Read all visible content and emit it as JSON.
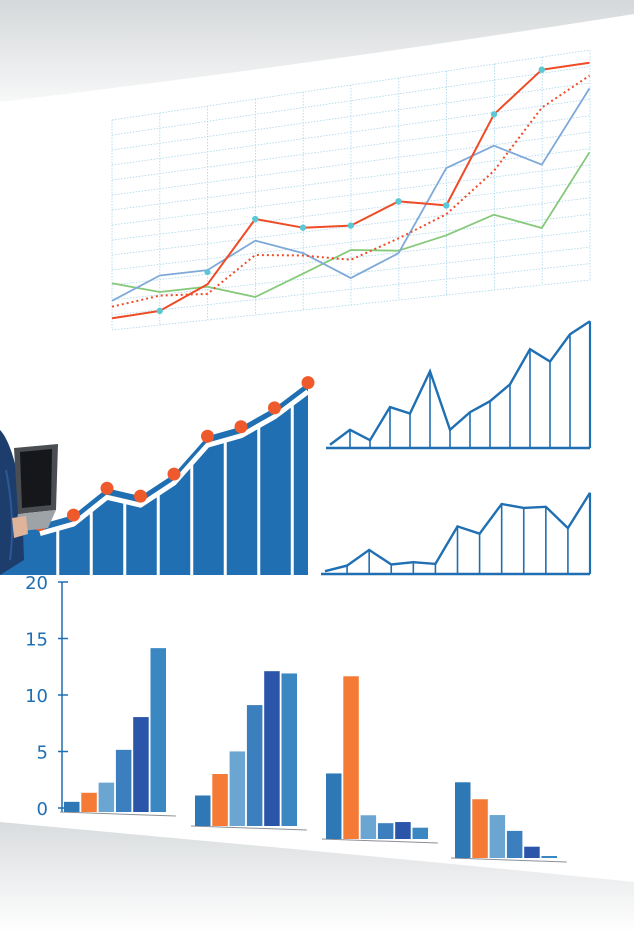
{
  "colors": {
    "red_line": "#ee4c27",
    "red_dotted": "#ee4c27",
    "light_blue_line": "#7ea9d9",
    "green_line": "#86c97a",
    "marker_teal": "#5cc8d6",
    "grid": "#a9d6ea",
    "area_blue": "#1f6fb2",
    "area_marker": "#ee5a2c",
    "outline_blue": "#1f6fb2",
    "axis_blue": "#1f6fb2",
    "bar_palette": [
      "#2f78b6",
      "#f47a36",
      "#6aa6d1",
      "#3c7fbe",
      "#2a55a8",
      "#3a87c2"
    ],
    "person_suit": "#1d3d6d",
    "laptop": "#4a4d52"
  },
  "chart_data": [
    {
      "type": "line",
      "x": [
        1,
        2,
        3,
        4,
        5,
        6,
        7,
        8,
        9,
        10,
        11
      ],
      "series": [
        {
          "values": [
            1,
            1.2,
            3,
            8,
            6.8,
            6.5,
            8,
            7.2,
            14,
            17,
            17
          ]
        },
        {
          "values": [
            2,
            2.5,
            2.2,
            5,
            4.5,
            3.7,
            5,
            6.5,
            9.5,
            14,
            16
          ]
        },
        {
          "values": [
            2.5,
            4.2,
            4.2,
            6.2,
            4.7,
            2.2,
            3.8,
            10.2,
            11.5,
            9.5,
            15
          ]
        },
        {
          "values": [
            4,
            2.8,
            2.8,
            1.5,
            3,
            4.5,
            4,
            4.8,
            6,
            4.5,
            10
          ]
        }
      ],
      "markers_on_first_series": true,
      "ylim": [
        0,
        18
      ],
      "grid": true
    },
    {
      "type": "area",
      "x": [
        1,
        2,
        3,
        4,
        5,
        6,
        7,
        8,
        9
      ],
      "values": [
        3.2,
        3.8,
        5.5,
        5,
        6.4,
        8.8,
        9.4,
        10.6,
        12.2
      ],
      "markers": true,
      "ylim": [
        0,
        13
      ]
    },
    {
      "type": "line",
      "values": [
        0.5,
        2.8,
        1.2,
        6.3,
        5.3,
        11.8,
        2.8,
        5.5,
        7.2,
        9.8,
        15.2,
        13.3,
        17.5,
        19.5
      ],
      "ylim": [
        0,
        20
      ],
      "style": "outline"
    },
    {
      "type": "line",
      "values": [
        0.5,
        1.5,
        4.3,
        1.7,
        2.1,
        1.8,
        8.5,
        7.2,
        12.5,
        11.8,
        12,
        8.2,
        14.5
      ],
      "ylim": [
        0,
        20
      ],
      "style": "outline"
    },
    {
      "type": "bar",
      "yticks": [
        "0",
        "5",
        "10",
        "15",
        "20"
      ],
      "ylim": [
        0,
        20
      ],
      "groups": [
        [
          0.9,
          1.7,
          2.6,
          5.5,
          8.4,
          14.5
        ],
        [
          2.7,
          4.6,
          6.6,
          10.7,
          13.7,
          13.5
        ],
        [
          5.8,
          14.4,
          2.1,
          1.4,
          1.5,
          1.0
        ],
        [
          6.7,
          5.2,
          3.8,
          2.4,
          1.0,
          -0.4
        ]
      ]
    }
  ]
}
